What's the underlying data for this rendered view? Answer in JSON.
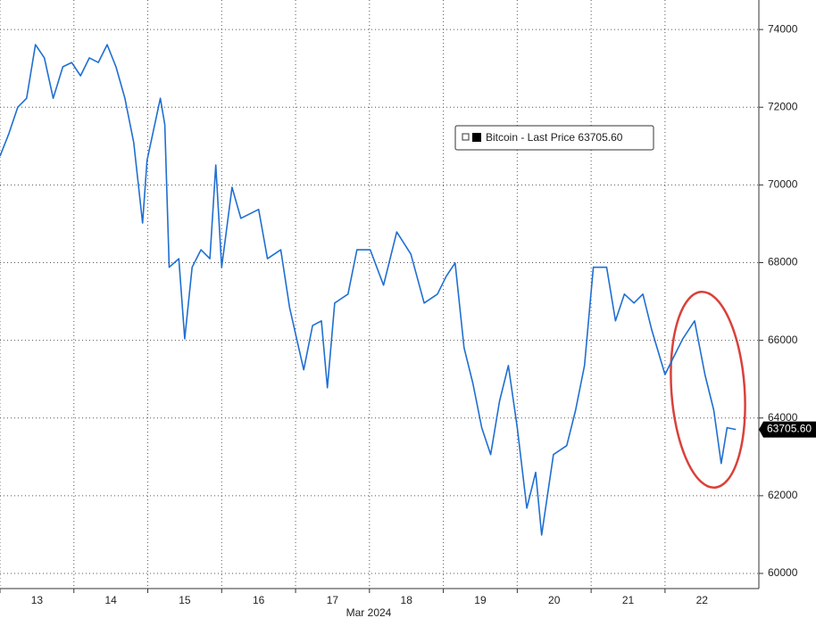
{
  "chart_data": {
    "type": "line",
    "series": [
      {
        "name": "Bitcoin - Last Price",
        "color": "#1f6fd1",
        "x": [
          13.0,
          13.12,
          13.24,
          13.36,
          13.48,
          13.6,
          13.72,
          13.85,
          13.97,
          14.09,
          14.21,
          14.33,
          14.45,
          14.57,
          14.69,
          14.81,
          14.93,
          14.99,
          15.17,
          15.23,
          15.29,
          15.42,
          15.5,
          15.6,
          15.72,
          15.84,
          15.92,
          16.0,
          16.14,
          16.26,
          16.5,
          16.62,
          16.8,
          16.92,
          17.11,
          17.23,
          17.35,
          17.43,
          17.53,
          17.71,
          17.83,
          18.01,
          18.19,
          18.37,
          18.56,
          18.74,
          18.92,
          19.04,
          19.16,
          19.28,
          19.4,
          19.52,
          19.64,
          19.76,
          19.88,
          20.0,
          20.13,
          20.25,
          20.33,
          20.49,
          20.67,
          20.79,
          20.91,
          21.03,
          21.21,
          21.33,
          21.45,
          21.58,
          21.7,
          21.82,
          22.0,
          22.12,
          22.24,
          22.4,
          22.54,
          22.66,
          22.76,
          22.84,
          22.96
        ],
        "values": [
          70740,
          71320,
          72000,
          72230,
          73610,
          73270,
          72230,
          73040,
          73150,
          72810,
          73270,
          73150,
          73610,
          73040,
          72230,
          71090,
          69020,
          70630,
          72230,
          71550,
          67880,
          68100,
          66040,
          67880,
          68330,
          68100,
          70510,
          67880,
          69940,
          69140,
          69370,
          68100,
          68330,
          66840,
          65240,
          66380,
          66500,
          64780,
          66960,
          67190,
          68330,
          68330,
          67420,
          68790,
          68220,
          66960,
          67190,
          67650,
          67990,
          65810,
          64890,
          63750,
          63060,
          64430,
          65350,
          63750,
          61680,
          62600,
          60990,
          63060,
          63290,
          64200,
          65350,
          67880,
          67880,
          66500,
          67190,
          66960,
          67190,
          66270,
          65120,
          65580,
          66040,
          66500,
          65120,
          64200,
          62830,
          63750,
          63705.6
        ]
      }
    ],
    "last_value_label": {
      "value": 63705.6,
      "label": "63705.60"
    },
    "x_axis_label": "Mar 2024",
    "xlim": [
      13,
      23.27
    ],
    "xticks": [
      13,
      14,
      15,
      16,
      17,
      18,
      19,
      20,
      21,
      22
    ],
    "ylim": [
      59610,
      74760
    ],
    "yticks": [
      60000,
      62000,
      64000,
      66000,
      68000,
      70000,
      72000,
      74000
    ],
    "grid": true
  }
}
